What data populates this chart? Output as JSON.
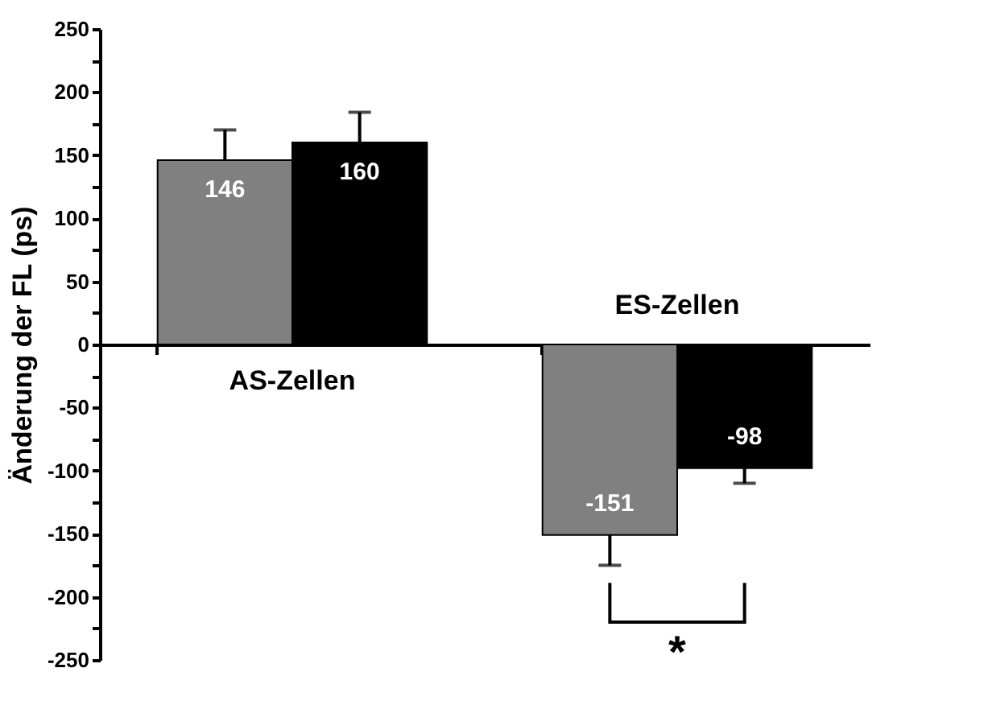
{
  "chart_data": {
    "type": "bar",
    "ylabel": "Änderung der FL (ps)",
    "categories": [
      "AS-Zellen",
      "ES-Zellen"
    ],
    "series": [
      {
        "color": "#808080",
        "values": [
          146,
          -151
        ],
        "errors": [
          24,
          24
        ]
      },
      {
        "color": "#000000",
        "values": [
          160,
          -98
        ],
        "errors": [
          24,
          12
        ]
      }
    ],
    "ylim": [
      -250,
      250
    ],
    "yticks": [
      -250,
      {
        "value": -225,
        "label": null
      },
      -200,
      {
        "value": -175,
        "label": null
      },
      -150,
      {
        "value": -125,
        "label": null
      },
      -100,
      {
        "value": -75,
        "label": null
      },
      -50,
      {
        "value": -25,
        "label": null
      },
      0,
      {
        "value": 25,
        "label": null
      },
      50,
      {
        "value": 75,
        "label": null
      },
      100,
      {
        "value": 125,
        "label": null
      },
      150,
      {
        "value": 175,
        "label": null
      },
      200,
      {
        "value": 225,
        "label": null
      },
      250
    ],
    "data_labels": true,
    "legend": false,
    "annotations": [
      "*"
    ]
  }
}
